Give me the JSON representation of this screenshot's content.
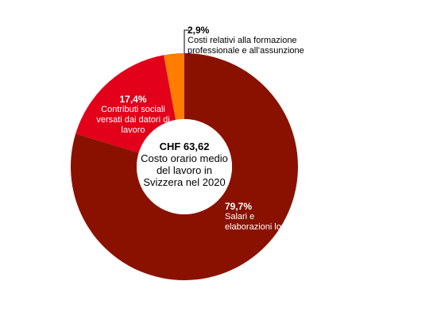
{
  "chart_data": {
    "type": "pie",
    "donut": true,
    "categories": [
      "Salari e elaborazioni lordi",
      "Contributi sociali versati dai datori di lavoro",
      "Costi relativi alla formazione professionale e all’assunzione"
    ],
    "values": [
      79.7,
      17.4,
      2.9
    ],
    "value_labels": [
      "79,7%",
      "17,4%",
      "2,9%"
    ],
    "colors": [
      "#8a1100",
      "#e2001a",
      "#ff7d00"
    ],
    "center_label": {
      "title": "CHF 63,62",
      "text": "Costo orario medio del lavoro in Svizzera nel 2020"
    }
  }
}
